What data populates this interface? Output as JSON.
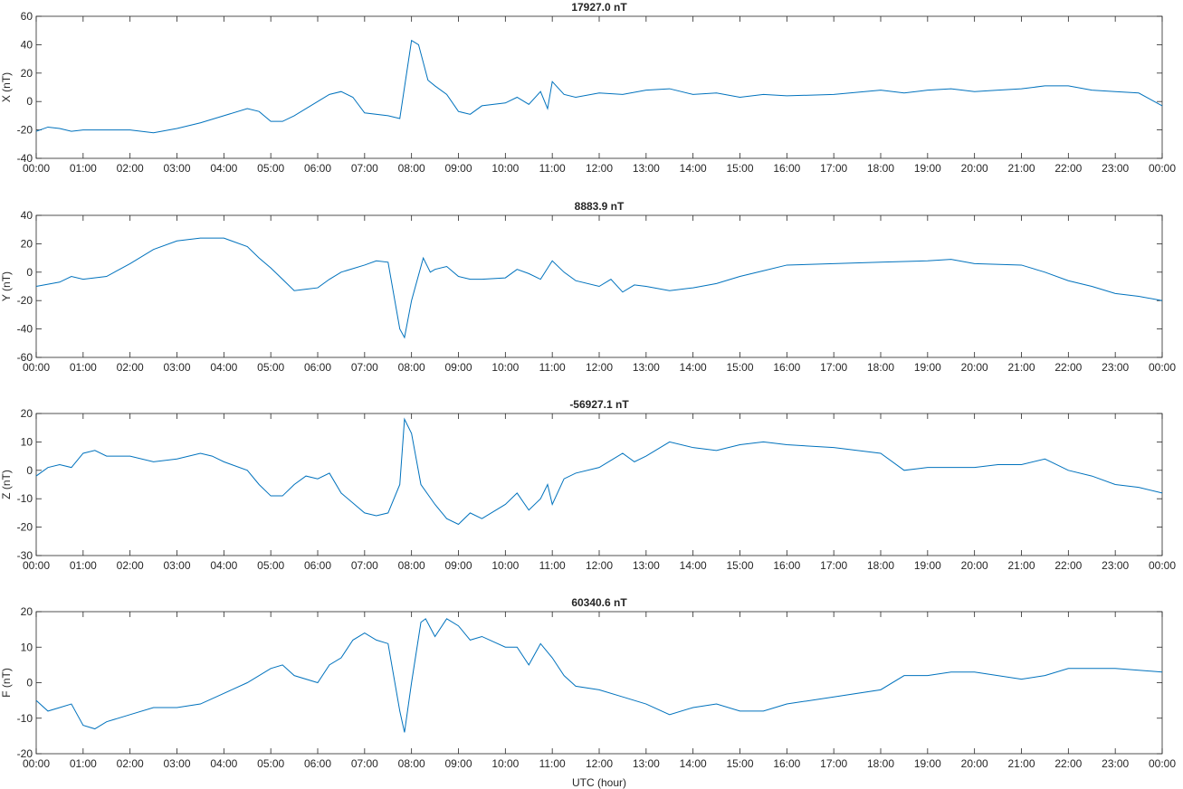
{
  "chart_data": [
    {
      "type": "line",
      "title": "17927.0 nT",
      "ylabel": "X (nT)",
      "color": "#0072bd",
      "xlim": [
        0,
        24
      ],
      "ylim": [
        -40,
        60
      ],
      "yticks": [
        -40,
        -20,
        0,
        20,
        40,
        60
      ],
      "xticks": [
        {
          "value": 0,
          "label": "00:00"
        },
        {
          "value": 1,
          "label": "01:00"
        },
        {
          "value": 2,
          "label": "02:00"
        },
        {
          "value": 3,
          "label": "03:00"
        },
        {
          "value": 4,
          "label": "04:00"
        },
        {
          "value": 5,
          "label": "05:00"
        },
        {
          "value": 6,
          "label": "06:00"
        },
        {
          "value": 7,
          "label": "07:00"
        },
        {
          "value": 8,
          "label": "08:00"
        },
        {
          "value": 9,
          "label": "09:00"
        },
        {
          "value": 10,
          "label": "10:00"
        },
        {
          "value": 11,
          "label": "11:00"
        },
        {
          "value": 12,
          "label": "12:00"
        },
        {
          "value": 13,
          "label": "13:00"
        },
        {
          "value": 14,
          "label": "14:00"
        },
        {
          "value": 15,
          "label": "15:00"
        },
        {
          "value": 16,
          "label": "16:00"
        },
        {
          "value": 17,
          "label": "17:00"
        },
        {
          "value": 18,
          "label": "18:00"
        },
        {
          "value": 19,
          "label": "19:00"
        },
        {
          "value": 20,
          "label": "20:00"
        },
        {
          "value": 21,
          "label": "21:00"
        },
        {
          "value": 22,
          "label": "22:00"
        },
        {
          "value": 23,
          "label": "23:00"
        },
        {
          "value": 24,
          "label": "00:00"
        }
      ],
      "x": [
        0,
        0.25,
        0.5,
        0.75,
        1,
        1.5,
        2,
        2.5,
        3,
        3.5,
        4,
        4.5,
        4.75,
        5,
        5.25,
        5.5,
        6,
        6.25,
        6.5,
        6.75,
        7,
        7.5,
        7.75,
        7.85,
        8,
        8.15,
        8.35,
        8.5,
        8.75,
        9,
        9.25,
        9.5,
        10,
        10.25,
        10.5,
        10.75,
        10.9,
        11,
        11.25,
        11.5,
        12,
        12.5,
        13,
        13.5,
        14,
        14.5,
        15,
        15.5,
        16,
        17,
        18,
        18.5,
        19,
        19.5,
        20,
        20.5,
        21,
        21.5,
        22,
        22.5,
        23,
        23.5,
        24
      ],
      "values": [
        -21,
        -18,
        -19,
        -21,
        -20,
        -20,
        -20,
        -22,
        -19,
        -15,
        -10,
        -5,
        -7,
        -14,
        -14,
        -10,
        0,
        5,
        7,
        3,
        -8,
        -10,
        -12,
        10,
        43,
        40,
        15,
        11,
        5,
        -7,
        -9,
        -3,
        -1,
        3,
        -2,
        7,
        -5,
        14,
        5,
        3,
        6,
        5,
        8,
        9,
        5,
        6,
        3,
        5,
        4,
        5,
        8,
        6,
        8,
        9,
        7,
        8,
        9,
        11,
        11,
        8,
        7,
        6,
        -3
      ]
    },
    {
      "type": "line",
      "title": "8883.9 nT",
      "ylabel": "Y (nT)",
      "color": "#0072bd",
      "xlim": [
        0,
        24
      ],
      "ylim": [
        -60,
        40
      ],
      "yticks": [
        -60,
        -40,
        -20,
        0,
        20,
        40
      ],
      "xticks": [
        {
          "value": 0,
          "label": "00:00"
        },
        {
          "value": 1,
          "label": "01:00"
        },
        {
          "value": 2,
          "label": "02:00"
        },
        {
          "value": 3,
          "label": "03:00"
        },
        {
          "value": 4,
          "label": "04:00"
        },
        {
          "value": 5,
          "label": "05:00"
        },
        {
          "value": 6,
          "label": "06:00"
        },
        {
          "value": 7,
          "label": "07:00"
        },
        {
          "value": 8,
          "label": "08:00"
        },
        {
          "value": 9,
          "label": "09:00"
        },
        {
          "value": 10,
          "label": "10:00"
        },
        {
          "value": 11,
          "label": "11:00"
        },
        {
          "value": 12,
          "label": "12:00"
        },
        {
          "value": 13,
          "label": "13:00"
        },
        {
          "value": 14,
          "label": "14:00"
        },
        {
          "value": 15,
          "label": "15:00"
        },
        {
          "value": 16,
          "label": "16:00"
        },
        {
          "value": 17,
          "label": "17:00"
        },
        {
          "value": 18,
          "label": "18:00"
        },
        {
          "value": 19,
          "label": "19:00"
        },
        {
          "value": 20,
          "label": "20:00"
        },
        {
          "value": 21,
          "label": "21:00"
        },
        {
          "value": 22,
          "label": "22:00"
        },
        {
          "value": 23,
          "label": "23:00"
        },
        {
          "value": 24,
          "label": "00:00"
        }
      ],
      "x": [
        0,
        0.5,
        0.75,
        1,
        1.5,
        2,
        2.5,
        3,
        3.5,
        4,
        4.5,
        4.75,
        5,
        5.25,
        5.5,
        5.75,
        6,
        6.25,
        6.5,
        7,
        7.25,
        7.5,
        7.75,
        7.85,
        8,
        8.25,
        8.4,
        8.5,
        8.75,
        9,
        9.25,
        9.5,
        10,
        10.25,
        10.5,
        10.75,
        11,
        11.25,
        11.5,
        12,
        12.25,
        12.5,
        12.75,
        13,
        13.5,
        14,
        14.5,
        15,
        15.5,
        16,
        17,
        18,
        19,
        19.5,
        20,
        21,
        21.5,
        22,
        22.5,
        23,
        23.5,
        24
      ],
      "values": [
        -10,
        -7,
        -3,
        -5,
        -3,
        6,
        16,
        22,
        24,
        24,
        18,
        10,
        3,
        -5,
        -13,
        -12,
        -11,
        -5,
        0,
        5,
        8,
        7,
        -40,
        -46,
        -20,
        10,
        0,
        2,
        4,
        -3,
        -5,
        -5,
        -4,
        2,
        -1,
        -5,
        8,
        0,
        -6,
        -10,
        -5,
        -14,
        -9,
        -10,
        -13,
        -11,
        -8,
        -3,
        1,
        5,
        6,
        7,
        8,
        9,
        6,
        5,
        0,
        -6,
        -10,
        -15,
        -17,
        -20
      ]
    },
    {
      "type": "line",
      "title": "-56927.1 nT",
      "ylabel": "Z (nT)",
      "color": "#0072bd",
      "xlim": [
        0,
        24
      ],
      "ylim": [
        -30,
        20
      ],
      "yticks": [
        -30,
        -20,
        -10,
        0,
        10,
        20
      ],
      "xticks": [
        {
          "value": 0,
          "label": "00:00"
        },
        {
          "value": 1,
          "label": "01:00"
        },
        {
          "value": 2,
          "label": "02:00"
        },
        {
          "value": 3,
          "label": "03:00"
        },
        {
          "value": 4,
          "label": "04:00"
        },
        {
          "value": 5,
          "label": "05:00"
        },
        {
          "value": 6,
          "label": "06:00"
        },
        {
          "value": 7,
          "label": "07:00"
        },
        {
          "value": 8,
          "label": "08:00"
        },
        {
          "value": 9,
          "label": "09:00"
        },
        {
          "value": 10,
          "label": "10:00"
        },
        {
          "value": 11,
          "label": "11:00"
        },
        {
          "value": 12,
          "label": "12:00"
        },
        {
          "value": 13,
          "label": "13:00"
        },
        {
          "value": 14,
          "label": "14:00"
        },
        {
          "value": 15,
          "label": "15:00"
        },
        {
          "value": 16,
          "label": "16:00"
        },
        {
          "value": 17,
          "label": "17:00"
        },
        {
          "value": 18,
          "label": "18:00"
        },
        {
          "value": 19,
          "label": "19:00"
        },
        {
          "value": 20,
          "label": "20:00"
        },
        {
          "value": 21,
          "label": "21:00"
        },
        {
          "value": 22,
          "label": "22:00"
        },
        {
          "value": 23,
          "label": "23:00"
        },
        {
          "value": 24,
          "label": "00:00"
        }
      ],
      "x": [
        0,
        0.25,
        0.5,
        0.75,
        1,
        1.25,
        1.5,
        2,
        2.5,
        3,
        3.5,
        3.75,
        4,
        4.5,
        4.75,
        5,
        5.25,
        5.5,
        5.75,
        6,
        6.25,
        6.5,
        7,
        7.25,
        7.5,
        7.75,
        7.85,
        8,
        8.2,
        8.5,
        8.75,
        9,
        9.25,
        9.5,
        10,
        10.25,
        10.5,
        10.75,
        10.9,
        11,
        11.25,
        11.5,
        12,
        12.5,
        12.75,
        13,
        13.5,
        14,
        14.5,
        15,
        15.5,
        16,
        17,
        18,
        18.5,
        19,
        20,
        20.5,
        21,
        21.5,
        22,
        22.5,
        23,
        23.5,
        24
      ],
      "values": [
        -2,
        1,
        2,
        1,
        6,
        7,
        5,
        5,
        3,
        4,
        6,
        5,
        3,
        0,
        -5,
        -9,
        -9,
        -5,
        -2,
        -3,
        -1,
        -8,
        -15,
        -16,
        -15,
        -5,
        18,
        13,
        -5,
        -12,
        -17,
        -19,
        -15,
        -17,
        -12,
        -8,
        -14,
        -10,
        -5,
        -12,
        -3,
        -1,
        1,
        6,
        3,
        5,
        10,
        8,
        7,
        9,
        10,
        9,
        8,
        6,
        0,
        1,
        1,
        2,
        2,
        4,
        0,
        -2,
        -5,
        -6,
        -8
      ]
    },
    {
      "type": "line",
      "title": "60340.6 nT",
      "ylabel": "F (nT)",
      "xlabel": "UTC (hour)",
      "color": "#0072bd",
      "xlim": [
        0,
        24
      ],
      "ylim": [
        -20,
        20
      ],
      "yticks": [
        -20,
        -10,
        0,
        10,
        20
      ],
      "xticks": [
        {
          "value": 0,
          "label": "00:00"
        },
        {
          "value": 1,
          "label": "01:00"
        },
        {
          "value": 2,
          "label": "02:00"
        },
        {
          "value": 3,
          "label": "03:00"
        },
        {
          "value": 4,
          "label": "04:00"
        },
        {
          "value": 5,
          "label": "05:00"
        },
        {
          "value": 6,
          "label": "06:00"
        },
        {
          "value": 7,
          "label": "07:00"
        },
        {
          "value": 8,
          "label": "08:00"
        },
        {
          "value": 9,
          "label": "09:00"
        },
        {
          "value": 10,
          "label": "10:00"
        },
        {
          "value": 11,
          "label": "11:00"
        },
        {
          "value": 12,
          "label": "12:00"
        },
        {
          "value": 13,
          "label": "13:00"
        },
        {
          "value": 14,
          "label": "14:00"
        },
        {
          "value": 15,
          "label": "15:00"
        },
        {
          "value": 16,
          "label": "16:00"
        },
        {
          "value": 17,
          "label": "17:00"
        },
        {
          "value": 18,
          "label": "18:00"
        },
        {
          "value": 19,
          "label": "19:00"
        },
        {
          "value": 20,
          "label": "20:00"
        },
        {
          "value": 21,
          "label": "21:00"
        },
        {
          "value": 22,
          "label": "22:00"
        },
        {
          "value": 23,
          "label": "23:00"
        },
        {
          "value": 24,
          "label": "00:00"
        }
      ],
      "x": [
        0,
        0.25,
        0.5,
        0.75,
        1,
        1.25,
        1.5,
        2,
        2.5,
        3,
        3.5,
        4,
        4.5,
        5,
        5.25,
        5.5,
        6,
        6.25,
        6.5,
        6.75,
        7,
        7.25,
        7.5,
        7.75,
        7.85,
        8,
        8.2,
        8.3,
        8.5,
        8.75,
        9,
        9.25,
        9.5,
        10,
        10.25,
        10.5,
        10.75,
        11,
        11.25,
        11.5,
        12,
        12.5,
        13,
        13.5,
        14,
        14.5,
        15,
        15.5,
        16,
        17,
        18,
        18.5,
        19,
        19.5,
        20,
        21,
        21.5,
        22,
        23,
        24
      ],
      "values": [
        -5,
        -8,
        -7,
        -6,
        -12,
        -13,
        -11,
        -9,
        -7,
        -7,
        -6,
        -3,
        0,
        4,
        5,
        2,
        0,
        5,
        7,
        12,
        14,
        12,
        11,
        -8,
        -14,
        0,
        17,
        18,
        13,
        18,
        16,
        12,
        13,
        10,
        10,
        5,
        11,
        7,
        2,
        -1,
        -2,
        -4,
        -6,
        -9,
        -7,
        -6,
        -8,
        -8,
        -6,
        -4,
        -2,
        2,
        2,
        3,
        3,
        1,
        2,
        4,
        4,
        3
      ]
    }
  ]
}
